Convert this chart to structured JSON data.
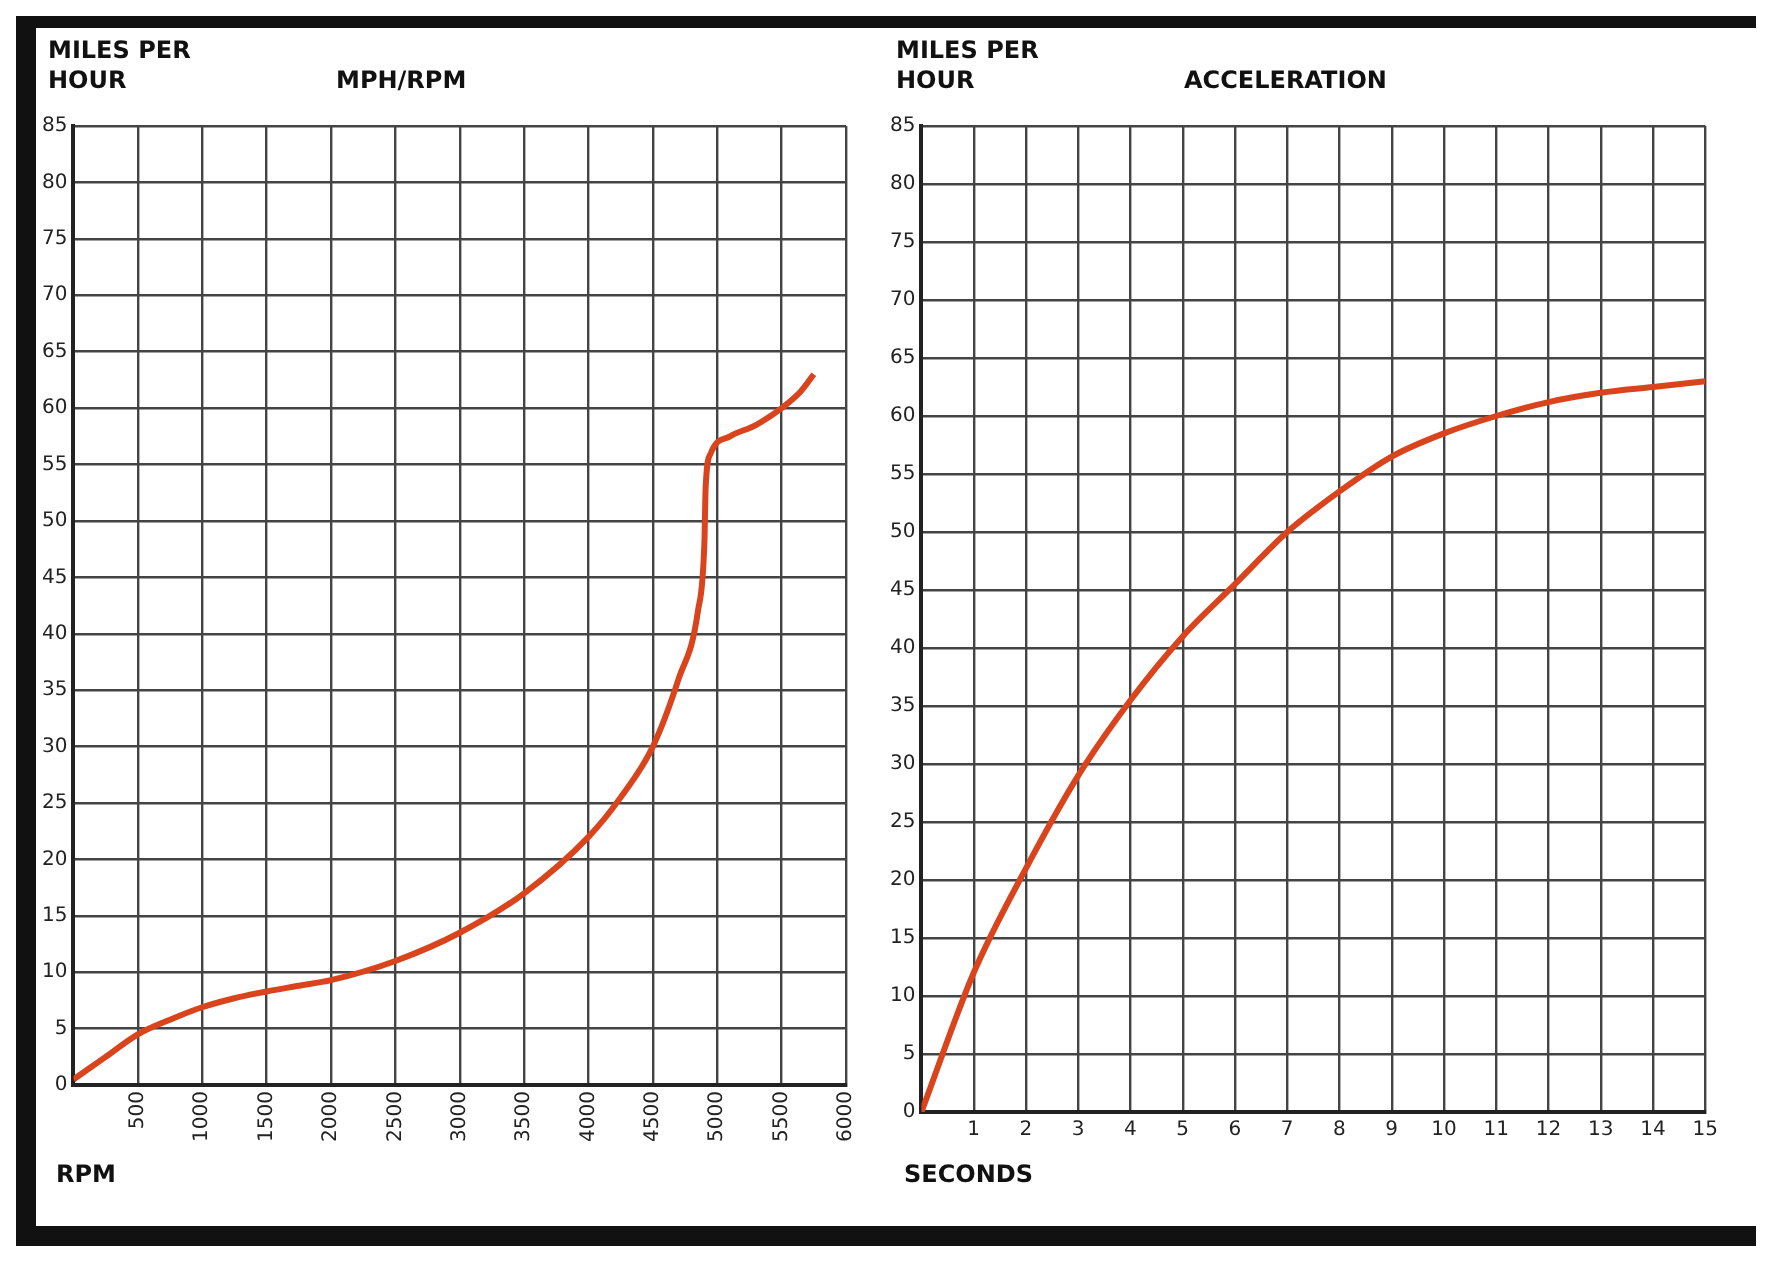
{
  "chart_data": [
    {
      "type": "line",
      "title": "MPH/RPM",
      "ylabel": "MILES PER HOUR",
      "xlabel": "RPM",
      "grid": true,
      "xlim": [
        0,
        6000
      ],
      "xticks": [
        500,
        1000,
        1500,
        2000,
        2500,
        3000,
        3500,
        4000,
        4500,
        5000,
        5500,
        6000
      ],
      "ylim": [
        0,
        85
      ],
      "yticks": [
        0,
        5,
        10,
        15,
        20,
        25,
        30,
        35,
        40,
        45,
        50,
        55,
        60,
        65,
        70,
        75,
        80,
        85
      ],
      "series": [
        {
          "color": "#d9441c",
          "x": [
            0,
            250,
            500,
            750,
            1000,
            1250,
            1500,
            1750,
            2000,
            2500,
            3000,
            3500,
            4000,
            4250,
            4500,
            4700,
            4850,
            4900,
            4910,
            4950,
            5100,
            5300,
            5500,
            5650,
            5750
          ],
          "values": [
            0.5,
            2.5,
            4.5,
            5.8,
            6.9,
            7.7,
            8.3,
            8.8,
            9.3,
            11,
            13.5,
            17,
            22,
            25.5,
            30,
            36,
            42,
            48,
            53,
            56,
            57.5,
            58.5,
            60,
            61.5,
            63
          ]
        }
      ]
    },
    {
      "type": "line",
      "title": "ACCELERATION",
      "ylabel": "MILES PER HOUR",
      "xlabel": "SECONDS",
      "grid": true,
      "xlim": [
        0,
        15
      ],
      "xticks": [
        1,
        2,
        3,
        4,
        5,
        6,
        7,
        8,
        9,
        10,
        11,
        12,
        13,
        14,
        15
      ],
      "ylim": [
        0,
        85
      ],
      "yticks": [
        0,
        5,
        10,
        15,
        20,
        25,
        30,
        35,
        40,
        45,
        50,
        55,
        60,
        65,
        70,
        75,
        80,
        85
      ],
      "series": [
        {
          "color": "#d9441c",
          "x": [
            0,
            1,
            2,
            3,
            4,
            5,
            6,
            7,
            8,
            9,
            10,
            11,
            12,
            13,
            14,
            15
          ],
          "values": [
            0,
            12,
            21,
            29,
            35.5,
            41,
            45.5,
            50,
            53.5,
            56.5,
            58.5,
            60,
            61.2,
            62,
            62.5,
            63
          ]
        }
      ]
    }
  ]
}
